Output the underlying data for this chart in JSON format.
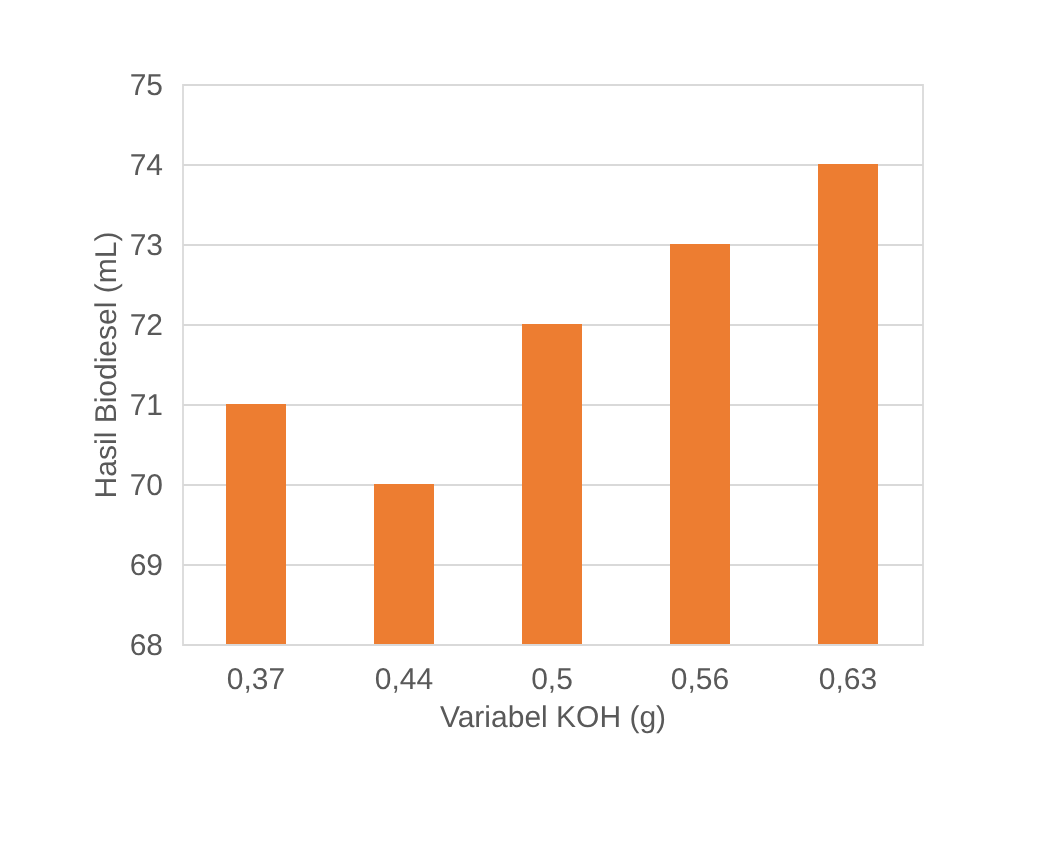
{
  "chart_data": {
    "type": "bar",
    "xlabel": "Variabel  KOH (g)",
    "ylabel": "Hasil Biodiesel (mL)",
    "categories": [
      "0,37",
      "0,44",
      "0,5",
      "0,56",
      "0,63"
    ],
    "values": [
      71,
      70,
      72,
      73,
      74
    ],
    "color": "#ed7d31",
    "ylim": [
      68,
      75
    ],
    "yticks": [
      68,
      69,
      70,
      71,
      72,
      73,
      74,
      75
    ],
    "grid": "y"
  }
}
